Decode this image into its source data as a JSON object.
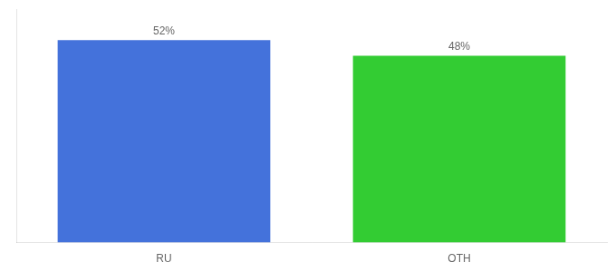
{
  "chart_data": {
    "type": "bar",
    "categories": [
      "RU",
      "OTH"
    ],
    "values": [
      52,
      48
    ],
    "value_labels": [
      "52%",
      "48%"
    ],
    "colors": [
      "#4472db",
      "#33cc33"
    ],
    "ylim": [
      0,
      60
    ],
    "data_labels": true,
    "tick_labels": "x",
    "grid": false
  }
}
